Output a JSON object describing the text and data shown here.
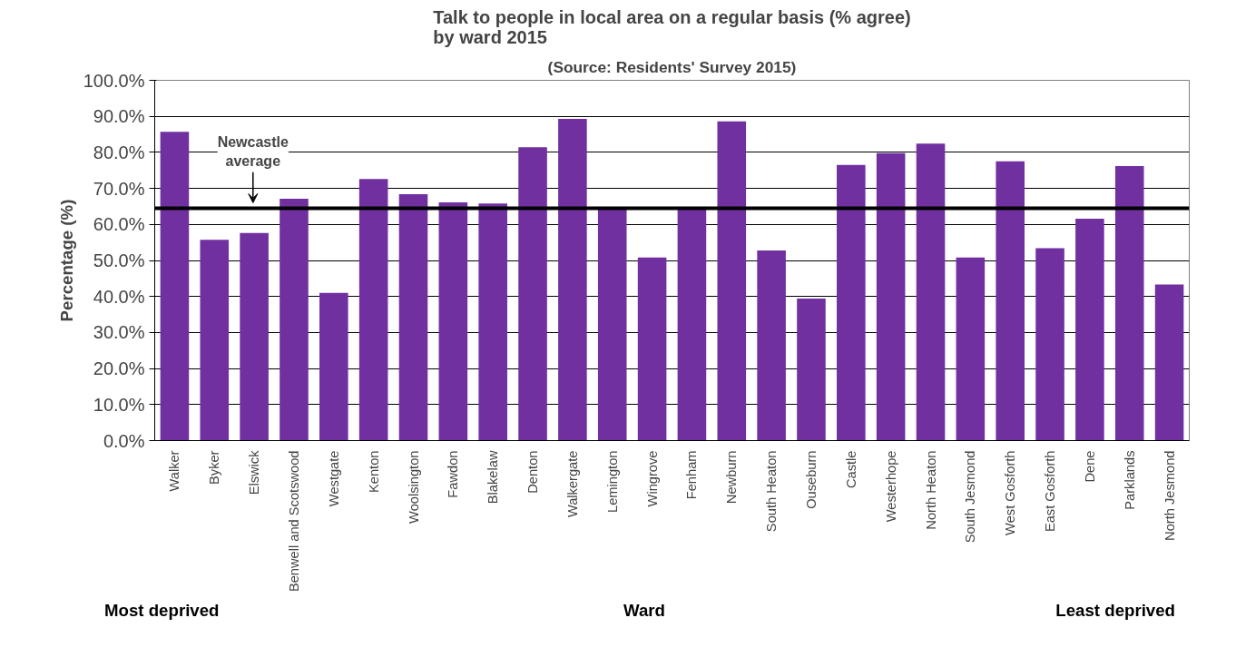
{
  "chart_data": {
    "type": "bar",
    "title": "Talk to people in local area on a regular basis (% agree)\nby ward 2015",
    "subtitle": "(Source: Residents' Survey 2015)",
    "xlabel": "Ward",
    "ylabel": "Percentage (%)",
    "categories": [
      "Walker",
      "Byker",
      "Elswick",
      "Benwell and Scotswood",
      "Westgate",
      "Kenton",
      "Woolsington",
      "Fawdon",
      "Blakelaw",
      "Denton",
      "Walkergate",
      "Lemington",
      "Wingrove",
      "Fenham",
      "Newburn",
      "South Heaton",
      "Ouseburn",
      "Castle",
      "Westerhope",
      "North Heaton",
      "South Jesmond",
      "West Gosforth",
      "East Gosforth",
      "Dene",
      "Parklands",
      "North Jesmond"
    ],
    "values": [
      85.7,
      55.7,
      57.6,
      67.1,
      41.0,
      72.6,
      68.4,
      66.1,
      65.8,
      81.4,
      89.3,
      64.8,
      50.8,
      64.5,
      88.6,
      52.8,
      39.4,
      76.5,
      79.8,
      82.4,
      50.8,
      77.5,
      53.4,
      61.6,
      76.2,
      43.3
    ],
    "color": "#7030a0",
    "ylim": [
      0,
      100
    ],
    "yticks": [
      {
        "value": 0,
        "label": "0.0%"
      },
      {
        "value": 10,
        "label": "10.0%"
      },
      {
        "value": 20,
        "label": "20.0%"
      },
      {
        "value": 30,
        "label": "30.0%"
      },
      {
        "value": 40,
        "label": "40.0%"
      },
      {
        "value": 50,
        "label": "50.0%"
      },
      {
        "value": 60,
        "label": "60.0%"
      },
      {
        "value": 70,
        "label": "70.0%"
      },
      {
        "value": 80,
        "label": "80.0%"
      },
      {
        "value": 90,
        "label": "90.0%"
      },
      {
        "value": 100,
        "label": "100.0%"
      }
    ],
    "grid": "y",
    "ref_lines": [
      {
        "axis": "y",
        "value": 64.5,
        "label": "Newcastle average",
        "color": "#000000"
      }
    ],
    "annotations": [
      "Most deprived",
      "Least deprived"
    ]
  }
}
